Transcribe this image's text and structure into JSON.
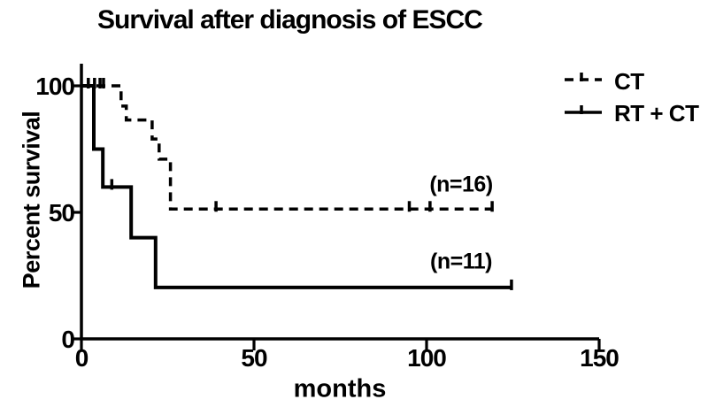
{
  "figure": {
    "background": "#ffffff",
    "ink": "#000000"
  },
  "chart_data": {
    "type": "line",
    "subtype": "kaplan-meier-step-curves",
    "title": "Survival after diagnosis of ESCC",
    "xlabel": "months",
    "ylabel": "Percent survival",
    "xlim": [
      0,
      150
    ],
    "ylim": [
      0,
      100
    ],
    "xticks": [
      0,
      50,
      100,
      150
    ],
    "yticks": [
      0,
      50,
      100
    ],
    "grid": false,
    "legend_position": "top-right",
    "series": [
      {
        "name": "CT",
        "line_style": "dashed",
        "color": "#000000",
        "n_label": "(n=16)",
        "steps": [
          [
            0,
            100
          ],
          [
            11.5,
            100
          ],
          [
            11.5,
            92
          ],
          [
            13,
            92
          ],
          [
            13,
            86.5
          ],
          [
            20.5,
            86.5
          ],
          [
            20.5,
            79
          ],
          [
            22.5,
            79
          ],
          [
            22.5,
            71
          ],
          [
            25.8,
            71
          ],
          [
            25.8,
            51.3
          ],
          [
            119,
            51.3
          ]
        ],
        "censor_marks": [
          [
            3.8,
            100
          ],
          [
            5.4,
            100
          ],
          [
            6.4,
            100
          ],
          [
            39,
            51.3
          ],
          [
            95,
            51.3
          ],
          [
            101,
            51.3
          ],
          [
            119,
            51.3
          ]
        ]
      },
      {
        "name": "RT + CT",
        "line_style": "solid",
        "color": "#000000",
        "n_label": "(n=11)",
        "steps": [
          [
            0,
            100
          ],
          [
            3.6,
            100
          ],
          [
            3.6,
            75
          ],
          [
            6.2,
            75
          ],
          [
            6.2,
            60
          ],
          [
            14.4,
            60
          ],
          [
            14.4,
            40
          ],
          [
            21.5,
            40
          ],
          [
            21.5,
            20.3
          ],
          [
            124.6,
            20.3
          ]
        ],
        "censor_marks": [
          [
            2,
            100
          ],
          [
            8.8,
            60
          ],
          [
            124.6,
            20.3
          ]
        ]
      }
    ],
    "annotations": [
      {
        "text": "(n=16)",
        "month": 110,
        "percent": 61
      },
      {
        "text": "(n=11)",
        "month": 110,
        "percent": 30.5
      }
    ]
  },
  "legend": {
    "items": [
      {
        "label": "CT",
        "style": "dashed"
      },
      {
        "label": "RT + CT",
        "style": "solid"
      }
    ]
  }
}
